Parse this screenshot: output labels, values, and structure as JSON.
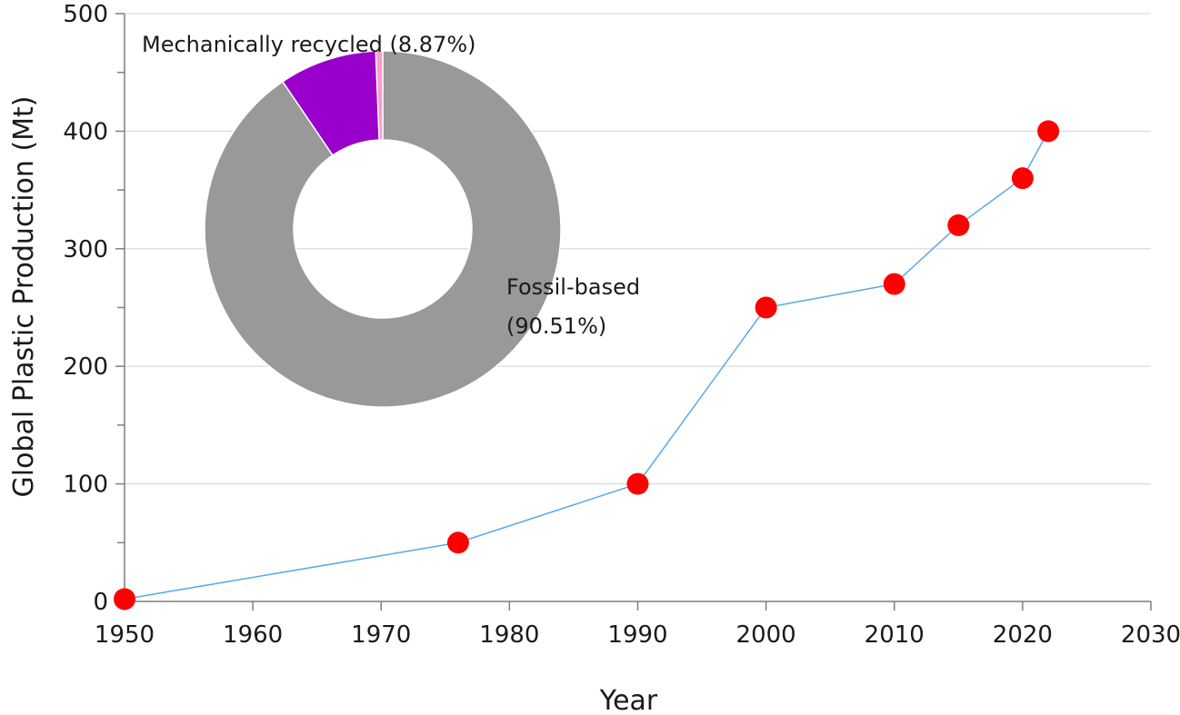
{
  "chart_data": [
    {
      "type": "line",
      "xlabel": "Year",
      "ylabel": "Global Plastic Production (Mt)",
      "xlim": [
        1950,
        2030
      ],
      "ylim": [
        0,
        500
      ],
      "x_ticks": [
        "1950",
        "1960",
        "1970",
        "1980",
        "1990",
        "2000",
        "2010",
        "2020",
        "2030"
      ],
      "y_ticks": [
        "0",
        "100",
        "200",
        "300",
        "400",
        "500"
      ],
      "grid": "horizontal",
      "line_color": "#5aa9e6",
      "marker_color": "#ff0000",
      "x": [
        1950,
        1976,
        1990,
        2000,
        2010,
        2015,
        2020,
        2022
      ],
      "y": [
        2,
        50,
        100,
        250,
        270,
        320,
        360,
        400
      ]
    },
    {
      "type": "pie",
      "style": "donut",
      "slices": [
        {
          "label": "Fossil-based",
          "value_text": "(90.51%)",
          "value": 90.51,
          "color": "#999999"
        },
        {
          "label": "Mechanically recycled (8.87%)",
          "value": 8.87,
          "color": "#9900cc"
        },
        {
          "label": "",
          "value": 0.62,
          "color": "#ff99cc"
        }
      ]
    }
  ]
}
